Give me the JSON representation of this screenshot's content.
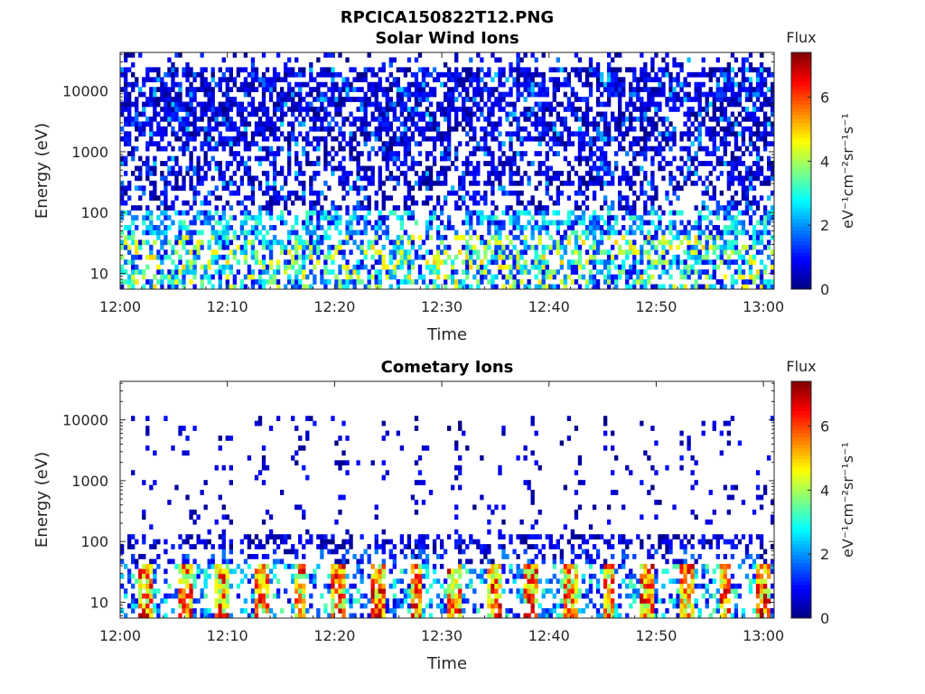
{
  "figure_title": "RPCICA150822T12.PNG",
  "colormap": [
    "#00007f",
    "#0000ff",
    "#007fff",
    "#00ffff",
    "#7fff7f",
    "#ffff00",
    "#ff7f00",
    "#ff0000",
    "#7f0000"
  ],
  "chart_data": [
    {
      "type": "heatmap",
      "title": "Solar Wind Ions",
      "xlabel": "Time",
      "ylabel": "Energy (eV)",
      "x_ticks": [
        "12:00",
        "12:10",
        "12:20",
        "12:30",
        "12:40",
        "12:50",
        "13:00"
      ],
      "x_range": [
        "12:00",
        "13:01"
      ],
      "y_scale": "log",
      "y_ticks": [
        "10",
        "100",
        "1000",
        "10000"
      ],
      "y_range": [
        5.5,
        43000
      ],
      "colorbar": {
        "title": "Flux",
        "label": "eV⁻¹cm⁻²sr⁻¹s⁻¹",
        "ticks": [
          "0",
          "2",
          "4",
          "6"
        ],
        "range": [
          0,
          7.4
        ]
      },
      "pattern": "scattered low-flux (0-2) counts across 10 eV-30 keV, denser above ~2 keV; intermittent 2-5 flux below 100 eV"
    },
    {
      "type": "heatmap",
      "title": "Cometary Ions",
      "xlabel": "Time",
      "ylabel": "Energy (eV)",
      "x_ticks": [
        "12:00",
        "12:10",
        "12:20",
        "12:30",
        "12:40",
        "12:50",
        "13:00"
      ],
      "x_range": [
        "12:00",
        "13:01"
      ],
      "y_scale": "log",
      "y_ticks": [
        "10",
        "100",
        "1000",
        "10000"
      ],
      "y_range": [
        5.5,
        43000
      ],
      "colorbar": {
        "title": "Flux",
        "label": "eV⁻¹cm⁻²sr⁻¹s⁻¹",
        "ticks": [
          "0",
          "2",
          "4",
          "6"
        ],
        "range": [
          0,
          7.4
        ]
      },
      "pattern": "periodic bursts (~every 3.5 min) of high flux (5-7) at 10-40 eV; sparse low-flux counts up to ~10 keV; band of counts near 100 eV"
    }
  ]
}
